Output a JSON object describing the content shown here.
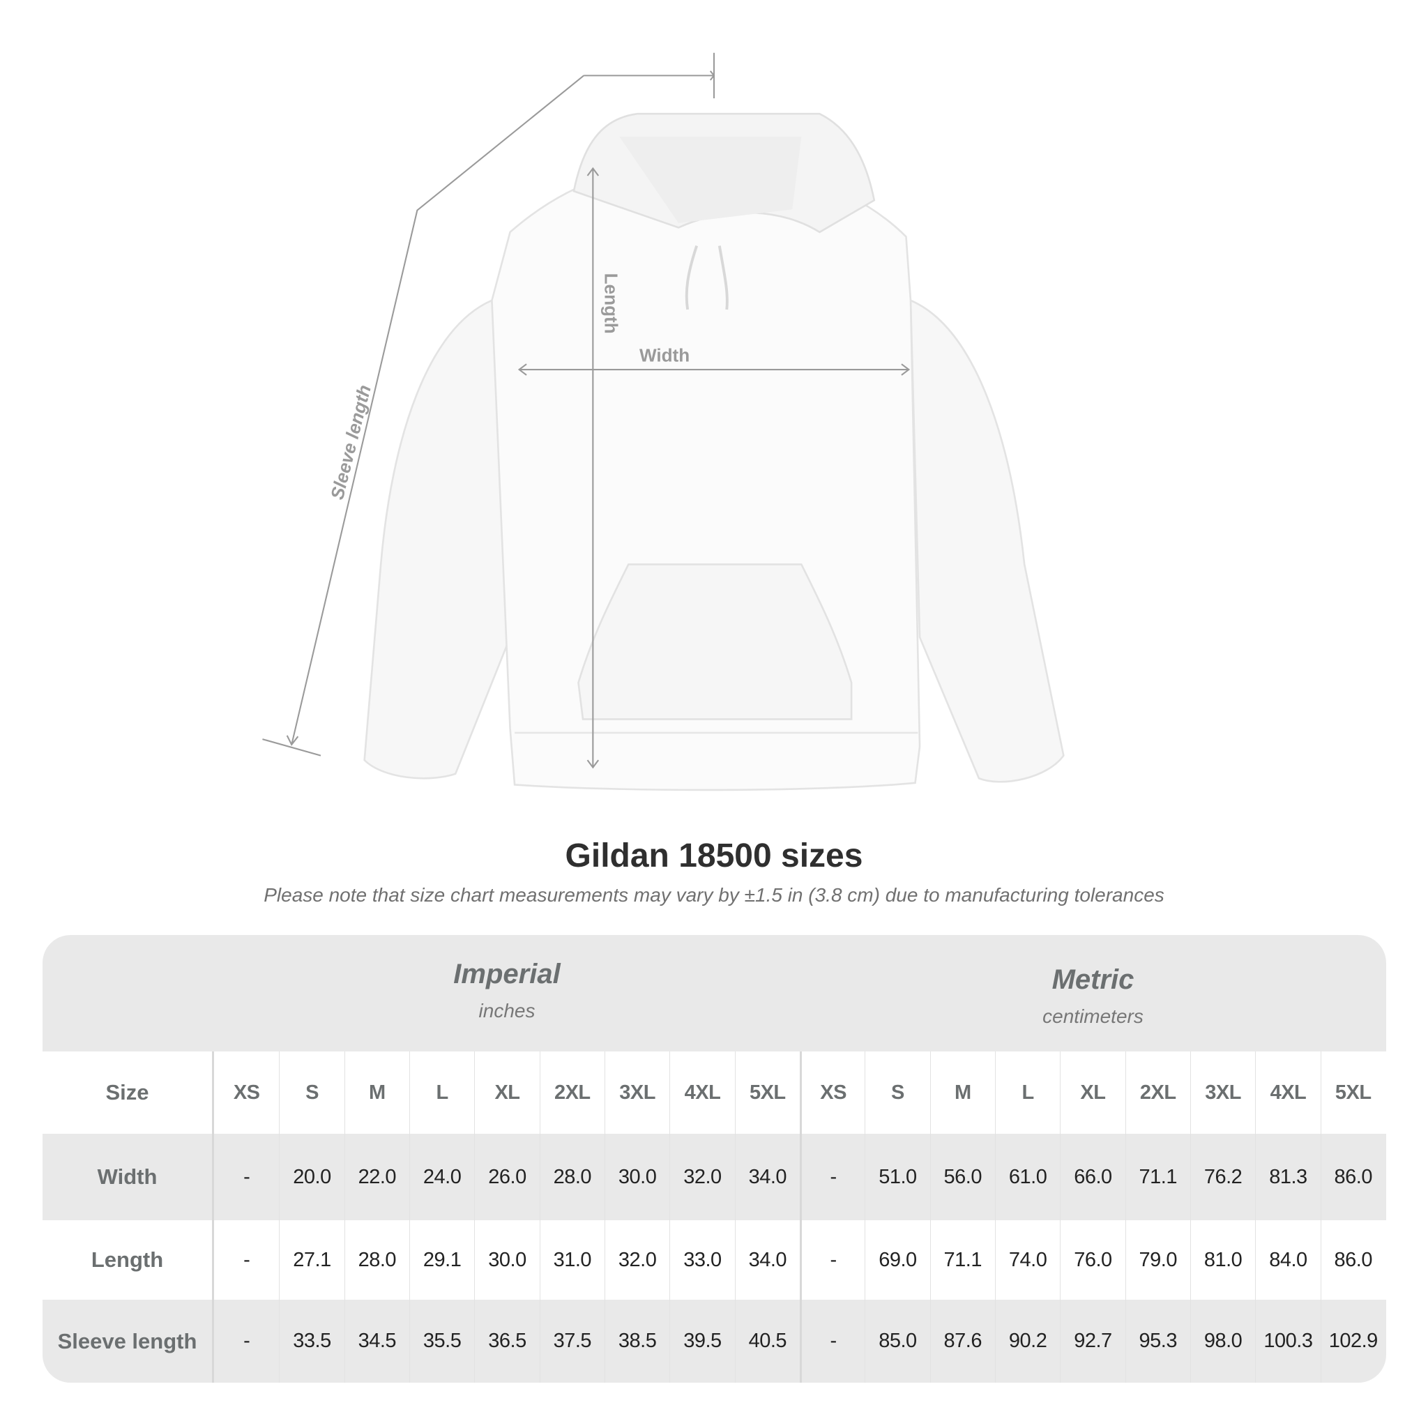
{
  "illustration": {
    "labels": {
      "length": "Length",
      "width": "Width",
      "sleeve": "Sleeve length"
    }
  },
  "title": "Gildan 18500 sizes",
  "note": "Please note that size chart measurements may vary by ±1.5 in (3.8 cm) due to manufacturing tolerances",
  "table": {
    "imperial": {
      "name": "Imperial",
      "unit": "inches"
    },
    "metric": {
      "name": "Metric",
      "unit": "centimeters"
    },
    "size_label": "Size",
    "sizes": [
      "XS",
      "S",
      "M",
      "L",
      "XL",
      "2XL",
      "3XL",
      "4XL",
      "5XL"
    ],
    "rows": [
      {
        "label": "Width",
        "imperial": [
          "-",
          "20.0",
          "22.0",
          "24.0",
          "26.0",
          "28.0",
          "30.0",
          "32.0",
          "34.0"
        ],
        "metric": [
          "-",
          "51.0",
          "56.0",
          "61.0",
          "66.0",
          "71.1",
          "76.2",
          "81.3",
          "86.0"
        ]
      },
      {
        "label": "Length",
        "imperial": [
          "-",
          "27.1",
          "28.0",
          "29.1",
          "30.0",
          "31.0",
          "32.0",
          "33.0",
          "34.0"
        ],
        "metric": [
          "-",
          "69.0",
          "71.1",
          "74.0",
          "76.0",
          "79.0",
          "81.0",
          "84.0",
          "86.0"
        ]
      },
      {
        "label": "Sleeve length",
        "imperial": [
          "-",
          "33.5",
          "34.5",
          "35.5",
          "36.5",
          "37.5",
          "38.5",
          "39.5",
          "40.5"
        ],
        "metric": [
          "-",
          "85.0",
          "87.6",
          "90.2",
          "92.7",
          "95.3",
          "98.0",
          "100.3",
          "102.9"
        ]
      }
    ]
  },
  "colors": {
    "band": "#e9e9e9",
    "label": "#6b6f70",
    "measure_line": "#9a9a9a"
  }
}
